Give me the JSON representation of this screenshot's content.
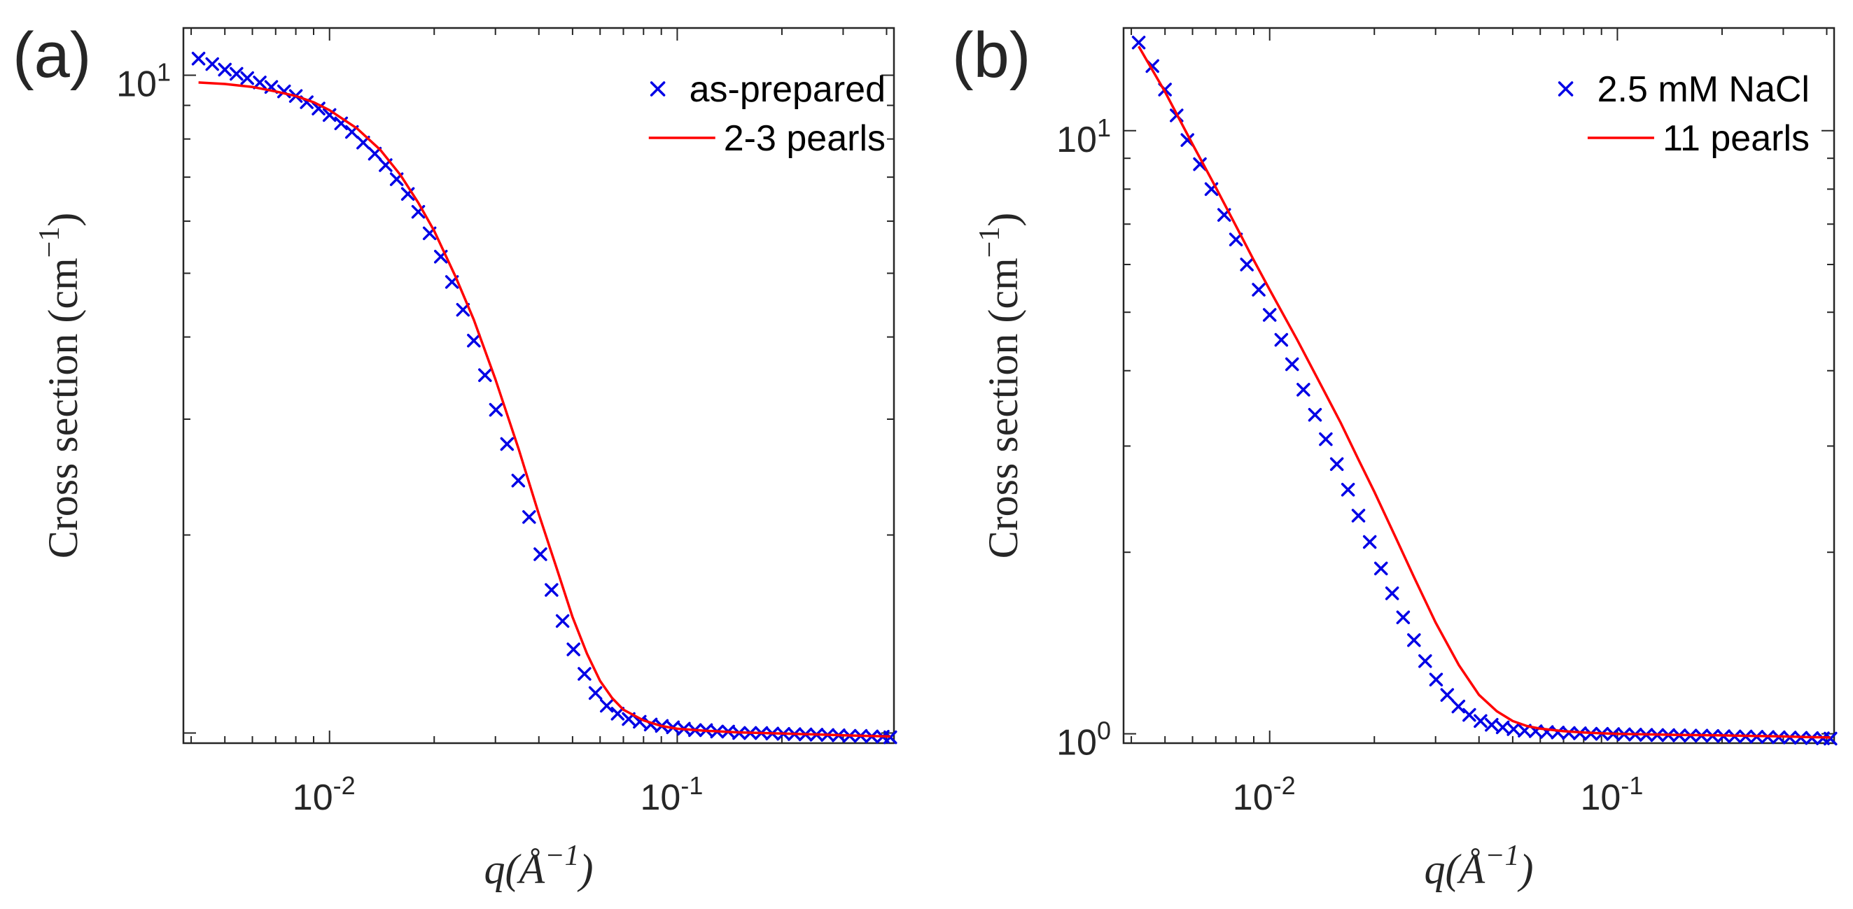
{
  "chart_data": [
    {
      "type": "scatter",
      "panel_label": "(a)",
      "xscale": "log",
      "yscale": "log",
      "xlim": [
        0.0038,
        0.42
      ],
      "ylim": [
        0.965,
        11.8
      ],
      "xlabel": {
        "main": "q(Å",
        "sup": "−1",
        "close": ")"
      },
      "ylabel": {
        "main": "Cross section (cm",
        "sup": "−1",
        "close": ")"
      },
      "x_ticks": [
        {
          "value": 0.01,
          "base": "10",
          "exp": "-2"
        },
        {
          "value": 0.1,
          "base": "10",
          "exp": "-1"
        }
      ],
      "y_ticks": [
        {
          "value": 10,
          "base": "10",
          "exp": "1"
        }
      ],
      "legend_position": "top-right",
      "series": [
        {
          "name": "as-prepared",
          "marker": "x",
          "color": "#0000e6",
          "x": [
            0.0042,
            0.0046,
            0.005,
            0.0054,
            0.0058,
            0.0063,
            0.0068,
            0.0074,
            0.008,
            0.0086,
            0.0093,
            0.01,
            0.0108,
            0.0116,
            0.0125,
            0.0135,
            0.0145,
            0.0156,
            0.0168,
            0.018,
            0.0194,
            0.0209,
            0.0225,
            0.0242,
            0.026,
            0.028,
            0.0301,
            0.0324,
            0.0349,
            0.0375,
            0.0404,
            0.0435,
            0.0468,
            0.0503,
            0.0541,
            0.0582,
            0.0627,
            0.0674,
            0.0725,
            0.078,
            0.0839,
            0.0903,
            0.0972,
            0.1045,
            0.1125,
            0.121,
            0.1302,
            0.1401,
            0.1507,
            0.1622,
            0.1745,
            0.1877,
            0.202,
            0.2173,
            0.2338,
            0.2515,
            0.2706,
            0.2911,
            0.3132,
            0.337,
            0.3626,
            0.39,
            0.41
          ],
          "y": [
            10.6,
            10.4,
            10.2,
            10.05,
            9.9,
            9.75,
            9.6,
            9.45,
            9.3,
            9.1,
            8.9,
            8.7,
            8.45,
            8.2,
            7.9,
            7.6,
            7.3,
            6.95,
            6.6,
            6.2,
            5.75,
            5.3,
            4.85,
            4.4,
            3.95,
            3.5,
            3.1,
            2.75,
            2.42,
            2.13,
            1.87,
            1.65,
            1.48,
            1.34,
            1.23,
            1.15,
            1.1,
            1.07,
            1.05,
            1.04,
            1.03,
            1.025,
            1.02,
            1.015,
            1.01,
            1.01,
            1.005,
            1.005,
            1.0,
            1.0,
            1.0,
            0.998,
            0.997,
            0.996,
            0.995,
            0.994,
            0.993,
            0.992,
            0.99,
            0.99,
            0.988,
            0.987,
            0.985
          ]
        },
        {
          "name": "2-3 pearls",
          "line": "solid",
          "color": "#ff0000",
          "x": [
            0.0042,
            0.005,
            0.006,
            0.007,
            0.008,
            0.009,
            0.01,
            0.012,
            0.014,
            0.016,
            0.018,
            0.02,
            0.023,
            0.026,
            0.03,
            0.035,
            0.04,
            0.045,
            0.05,
            0.055,
            0.06,
            0.065,
            0.07,
            0.08,
            0.09,
            0.1,
            0.12,
            0.15,
            0.2,
            0.25,
            0.3,
            0.35,
            0.41
          ],
          "y": [
            9.75,
            9.7,
            9.6,
            9.45,
            9.3,
            9.1,
            8.85,
            8.3,
            7.7,
            7.05,
            6.4,
            5.8,
            4.95,
            4.25,
            3.45,
            2.7,
            2.15,
            1.78,
            1.5,
            1.32,
            1.2,
            1.13,
            1.085,
            1.045,
            1.025,
            1.015,
            1.008,
            1.002,
            0.998,
            0.995,
            0.992,
            0.99,
            0.988
          ]
        }
      ]
    },
    {
      "type": "scatter",
      "panel_label": "(b)",
      "xscale": "log",
      "yscale": "log",
      "xlim": [
        0.0038,
        0.42
      ],
      "ylim": [
        0.965,
        14.8
      ],
      "xlabel": {
        "main": "q(Å",
        "sup": "−1",
        "close": ")"
      },
      "ylabel": {
        "main": "Cross section (cm",
        "sup": "−1",
        "close": ")"
      },
      "x_ticks": [
        {
          "value": 0.01,
          "base": "10",
          "exp": "-2"
        },
        {
          "value": 0.1,
          "base": "10",
          "exp": "-1"
        }
      ],
      "y_ticks": [
        {
          "value": 1,
          "base": "10",
          "exp": "0"
        },
        {
          "value": 10,
          "base": "10",
          "exp": "1"
        }
      ],
      "legend_position": "top-right",
      "series": [
        {
          "name": "2.5 mM NaCl",
          "marker": "x",
          "color": "#0000e6",
          "x": [
            0.0042,
            0.0046,
            0.005,
            0.0054,
            0.0058,
            0.0063,
            0.0068,
            0.0074,
            0.008,
            0.0086,
            0.0093,
            0.01,
            0.0108,
            0.0116,
            0.0125,
            0.0135,
            0.0145,
            0.0156,
            0.0168,
            0.018,
            0.0194,
            0.0209,
            0.0225,
            0.0242,
            0.026,
            0.028,
            0.0301,
            0.0324,
            0.0349,
            0.0375,
            0.0404,
            0.0435,
            0.0468,
            0.0503,
            0.0541,
            0.0582,
            0.0627,
            0.0674,
            0.0725,
            0.078,
            0.0839,
            0.0903,
            0.0972,
            0.1045,
            0.1125,
            0.121,
            0.1302,
            0.1401,
            0.1507,
            0.1622,
            0.1745,
            0.1877,
            0.202,
            0.2173,
            0.2338,
            0.2515,
            0.2706,
            0.2911,
            0.3132,
            0.337,
            0.3626,
            0.39,
            0.41
          ],
          "y": [
            14.0,
            12.8,
            11.7,
            10.6,
            9.65,
            8.8,
            8.0,
            7.25,
            6.6,
            6.0,
            5.45,
            4.95,
            4.5,
            4.1,
            3.72,
            3.38,
            3.08,
            2.8,
            2.54,
            2.3,
            2.08,
            1.88,
            1.71,
            1.56,
            1.43,
            1.32,
            1.23,
            1.16,
            1.11,
            1.075,
            1.05,
            1.035,
            1.025,
            1.018,
            1.012,
            1.01,
            1.007,
            1.005,
            1.003,
            1.002,
            1.0,
            1.0,
            0.999,
            0.998,
            0.997,
            0.996,
            0.995,
            0.995,
            0.994,
            0.993,
            0.993,
            0.992,
            0.991,
            0.99,
            0.99,
            0.989,
            0.988,
            0.987,
            0.986,
            0.985,
            0.984,
            0.983,
            0.982
          ]
        },
        {
          "name": "11 pearls",
          "line": "solid",
          "color": "#ff0000",
          "x": [
            0.0042,
            0.005,
            0.006,
            0.007,
            0.008,
            0.009,
            0.01,
            0.012,
            0.014,
            0.016,
            0.018,
            0.02,
            0.023,
            0.026,
            0.03,
            0.035,
            0.04,
            0.045,
            0.05,
            0.055,
            0.06,
            0.07,
            0.08,
            0.09,
            0.1,
            0.12,
            0.15,
            0.2,
            0.25,
            0.3,
            0.35,
            0.41
          ],
          "y": [
            13.8,
            11.6,
            9.5,
            8.05,
            6.95,
            6.1,
            5.45,
            4.5,
            3.8,
            3.28,
            2.85,
            2.52,
            2.12,
            1.82,
            1.53,
            1.3,
            1.16,
            1.09,
            1.05,
            1.03,
            1.02,
            1.01,
            1.005,
            1.002,
            1.0,
            0.998,
            0.996,
            0.994,
            0.992,
            0.99,
            0.988,
            0.986
          ]
        }
      ]
    }
  ]
}
